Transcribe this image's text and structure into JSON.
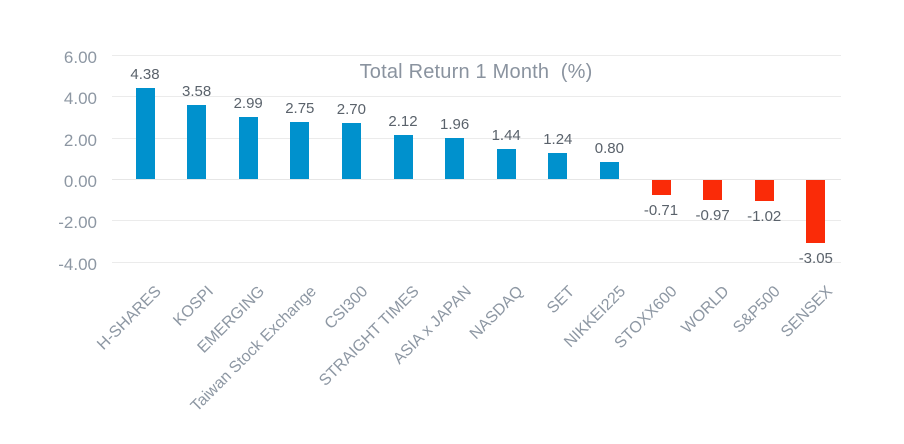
{
  "chart_data": {
    "type": "bar",
    "title": "Total Return 1 Month  (%)",
    "xlabel": "",
    "ylabel": "",
    "categories": [
      "H-SHARES",
      "KOSPI",
      "EMERGING",
      "Taiwan Stock Exchange",
      "CSI300",
      "STRAIGHT TIMES",
      "ASIA x JAPAN",
      "NASDAQ",
      "SET",
      "NIKKEI225",
      "STOXX600",
      "WORLD",
      "S&P500",
      "SENSEX"
    ],
    "values": [
      4.38,
      3.58,
      2.99,
      2.75,
      2.7,
      2.12,
      1.96,
      1.44,
      1.24,
      0.8,
      -0.71,
      -0.97,
      -1.02,
      -3.05
    ],
    "data_labels": [
      "4.38",
      "3.58",
      "2.99",
      "2.75",
      "2.70",
      "2.12",
      "1.96",
      "1.44",
      "1.24",
      "0.80",
      "-0.71",
      "-0.97",
      "-1.02",
      "-3.05"
    ],
    "y_ticks": [
      "6.00",
      "4.00",
      "2.00",
      "0.00",
      "-2.00",
      "-4.00"
    ],
    "y_tick_values": [
      6,
      4,
      2,
      0,
      -2,
      -4
    ],
    "ylim": [
      -4,
      6
    ],
    "grid": true,
    "legend": false,
    "colors": {
      "positive_bar": "#0091cd",
      "negative_bar": "#fa2b08",
      "gridline": "#ebebeb",
      "axis_label": "#8d97a3",
      "data_label": "#5a626b",
      "title": "#8a939f"
    }
  }
}
